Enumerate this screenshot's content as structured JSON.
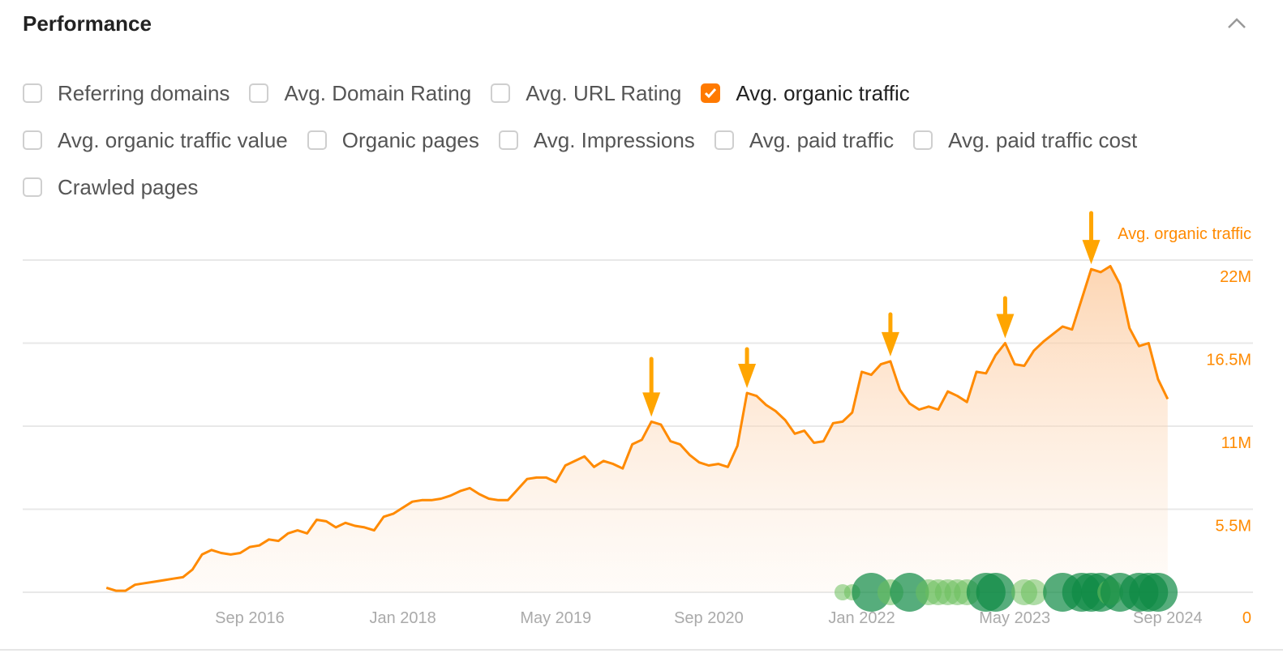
{
  "header": {
    "title": "Performance",
    "collapse_icon": "chevron-up-icon"
  },
  "options": [
    [
      {
        "label": "Referring domains",
        "checked": false
      },
      {
        "label": "Avg. Domain Rating",
        "checked": false
      },
      {
        "label": "Avg. URL Rating",
        "checked": false
      },
      {
        "label": "Avg. organic traffic",
        "checked": true
      }
    ],
    [
      {
        "label": "Avg. organic traffic value",
        "checked": false
      },
      {
        "label": "Organic pages",
        "checked": false
      },
      {
        "label": "Avg. Impressions",
        "checked": false
      },
      {
        "label": "Avg. paid traffic",
        "checked": false
      },
      {
        "label": "Avg. paid traffic cost",
        "checked": false
      }
    ],
    [
      {
        "label": "Crawled pages",
        "checked": false
      }
    ]
  ],
  "colors": {
    "accent": "#ff8a00",
    "arrow": "#ffa500",
    "grid": "#e8e8e8",
    "axis_text": "#aaaaaa",
    "event_dark": "#0e8a45",
    "event_light": "#6cbf5c"
  },
  "chart_data": {
    "type": "area",
    "series": [
      {
        "name": "Avg. organic traffic",
        "color": "#ff8a00"
      }
    ],
    "x": [
      "2015-06",
      "2015-07",
      "2015-08",
      "2015-09",
      "2015-10",
      "2015-11",
      "2015-12",
      "2016-01",
      "2016-02",
      "2016-03",
      "2016-04",
      "2016-05",
      "2016-06",
      "2016-07",
      "2016-08",
      "2016-09",
      "2016-10",
      "2016-11",
      "2016-12",
      "2017-01",
      "2017-02",
      "2017-03",
      "2017-04",
      "2017-05",
      "2017-06",
      "2017-07",
      "2017-08",
      "2017-09",
      "2017-10",
      "2017-11",
      "2017-12",
      "2018-01",
      "2018-02",
      "2018-03",
      "2018-04",
      "2018-05",
      "2018-06",
      "2018-07",
      "2018-08",
      "2018-09",
      "2018-10",
      "2018-11",
      "2018-12",
      "2019-01",
      "2019-02",
      "2019-03",
      "2019-04",
      "2019-05",
      "2019-06",
      "2019-07",
      "2019-08",
      "2019-09",
      "2019-10",
      "2019-11",
      "2019-12",
      "2020-01",
      "2020-02",
      "2020-03",
      "2020-04",
      "2020-05",
      "2020-06",
      "2020-07",
      "2020-08",
      "2020-09",
      "2020-10",
      "2020-11",
      "2020-12",
      "2021-01",
      "2021-02",
      "2021-03",
      "2021-04",
      "2021-05",
      "2021-06",
      "2021-07",
      "2021-08",
      "2021-09",
      "2021-10",
      "2021-11",
      "2021-12",
      "2022-01",
      "2022-02",
      "2022-03",
      "2022-04",
      "2022-05",
      "2022-06",
      "2022-07",
      "2022-08",
      "2022-09",
      "2022-10",
      "2022-11",
      "2022-12",
      "2023-01",
      "2023-02",
      "2023-03",
      "2023-04",
      "2023-05",
      "2023-06",
      "2023-07",
      "2023-08",
      "2023-09",
      "2023-10",
      "2023-11",
      "2023-12",
      "2024-01",
      "2024-02",
      "2024-03",
      "2024-04",
      "2024-05",
      "2024-06",
      "2024-07",
      "2024-08",
      "2024-09"
    ],
    "values_millions": [
      0.3,
      0.1,
      0.1,
      0.5,
      0.6,
      0.7,
      0.8,
      0.9,
      1.0,
      1.5,
      2.5,
      2.8,
      2.6,
      2.5,
      2.6,
      3.0,
      3.1,
      3.5,
      3.4,
      3.9,
      4.1,
      3.9,
      4.8,
      4.7,
      4.3,
      4.6,
      4.4,
      4.3,
      4.1,
      5.0,
      5.2,
      5.6,
      6.0,
      6.1,
      6.1,
      6.2,
      6.4,
      6.7,
      6.9,
      6.5,
      6.2,
      6.1,
      6.1,
      6.8,
      7.5,
      7.6,
      7.6,
      7.3,
      8.4,
      8.7,
      9.0,
      8.3,
      8.7,
      8.5,
      8.2,
      9.8,
      10.1,
      11.3,
      11.1,
      10.0,
      9.8,
      9.1,
      8.6,
      8.4,
      8.5,
      8.3,
      9.7,
      13.2,
      13.0,
      12.4,
      12.0,
      11.4,
      10.5,
      10.7,
      9.9,
      10.0,
      11.2,
      11.3,
      11.9,
      14.6,
      14.4,
      15.1,
      15.3,
      13.4,
      12.5,
      12.1,
      12.3,
      12.1,
      13.3,
      13.0,
      12.6,
      14.6,
      14.5,
      15.7,
      16.5,
      15.1,
      15.0,
      16.0,
      16.6,
      17.1,
      17.6,
      17.4,
      19.4,
      21.4,
      21.2,
      21.6,
      20.4,
      17.5,
      16.3,
      16.5,
      14.1,
      12.8
    ],
    "series_label": "Avg. organic traffic",
    "x_tick_labels": [
      "Sep 2016",
      "Jan 2018",
      "May 2019",
      "Sep 2020",
      "Jan 2022",
      "May 2023",
      "Sep 2024"
    ],
    "x_ticks": [
      "2016-09",
      "2018-01",
      "2019-05",
      "2020-09",
      "2022-01",
      "2023-05",
      "2024-09"
    ],
    "y_tick_labels": [
      "0",
      "5.5M",
      "11M",
      "16.5M",
      "22M"
    ],
    "y_ticks": [
      0,
      5.5,
      11,
      16.5,
      22
    ],
    "ylim": [
      0,
      22
    ],
    "y_axis_position": "right",
    "grid": true,
    "annotations": {
      "type": "down-arrow",
      "dates": [
        "2020-03",
        "2021-01",
        "2022-04",
        "2023-04",
        "2024-01"
      ]
    },
    "events": [
      {
        "date": "2021-11",
        "weight": 1,
        "tone": "light"
      },
      {
        "date": "2021-12",
        "weight": 1,
        "tone": "light"
      },
      {
        "date": "2022-02",
        "weight": 3,
        "tone": "dark"
      },
      {
        "date": "2022-04",
        "weight": 2,
        "tone": "light"
      },
      {
        "date": "2022-06",
        "weight": 3,
        "tone": "dark"
      },
      {
        "date": "2022-08",
        "weight": 2,
        "tone": "light"
      },
      {
        "date": "2022-09",
        "weight": 2,
        "tone": "light"
      },
      {
        "date": "2022-10",
        "weight": 2,
        "tone": "light"
      },
      {
        "date": "2022-11",
        "weight": 2,
        "tone": "light"
      },
      {
        "date": "2022-12",
        "weight": 2,
        "tone": "light"
      },
      {
        "date": "2023-02",
        "weight": 3,
        "tone": "dark"
      },
      {
        "date": "2023-03",
        "weight": 3,
        "tone": "dark"
      },
      {
        "date": "2023-06",
        "weight": 2,
        "tone": "light"
      },
      {
        "date": "2023-07",
        "weight": 2,
        "tone": "light"
      },
      {
        "date": "2023-10",
        "weight": 3,
        "tone": "dark"
      },
      {
        "date": "2023-12",
        "weight": 3,
        "tone": "dark"
      },
      {
        "date": "2024-01",
        "weight": 3,
        "tone": "dark"
      },
      {
        "date": "2024-02",
        "weight": 3,
        "tone": "dark"
      },
      {
        "date": "2024-03",
        "weight": 2,
        "tone": "light"
      },
      {
        "date": "2024-04",
        "weight": 3,
        "tone": "dark"
      },
      {
        "date": "2024-06",
        "weight": 3,
        "tone": "dark"
      },
      {
        "date": "2024-07",
        "weight": 3,
        "tone": "dark"
      },
      {
        "date": "2024-08",
        "weight": 3,
        "tone": "dark"
      }
    ]
  }
}
